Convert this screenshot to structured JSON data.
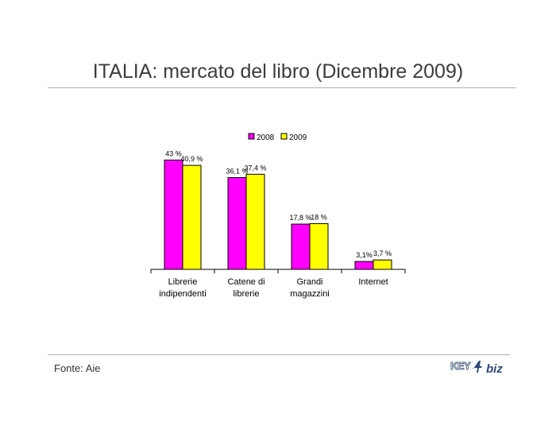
{
  "title": "ITALIA: mercato del libro (Dicembre 2009)",
  "source": "Fonte: Aie",
  "logo": {
    "text_key": "KEY",
    "text_biz": "biz"
  },
  "colors": {
    "2008": "#ff00ff",
    "2009": "#ffff00"
  },
  "chart_data": {
    "type": "bar",
    "categories": [
      [
        "Librerie",
        "indipendenti"
      ],
      [
        "Catene di",
        "librerie"
      ],
      [
        "Grandi",
        "magazzini"
      ],
      [
        "Internet"
      ]
    ],
    "series": [
      {
        "name": "2008",
        "values": [
          43,
          36.1,
          17.8,
          3.1
        ],
        "labels": [
          "43 %",
          "36,1 %",
          "17,8 %",
          "3,1%"
        ]
      },
      {
        "name": "2009",
        "values": [
          40.9,
          37.4,
          18,
          3.7
        ],
        "labels": [
          "40,9 %",
          "37,4 %",
          "18 %",
          "3,7 %"
        ]
      }
    ],
    "ylim": [
      0,
      45
    ],
    "grid": false,
    "legend_position": "top"
  }
}
